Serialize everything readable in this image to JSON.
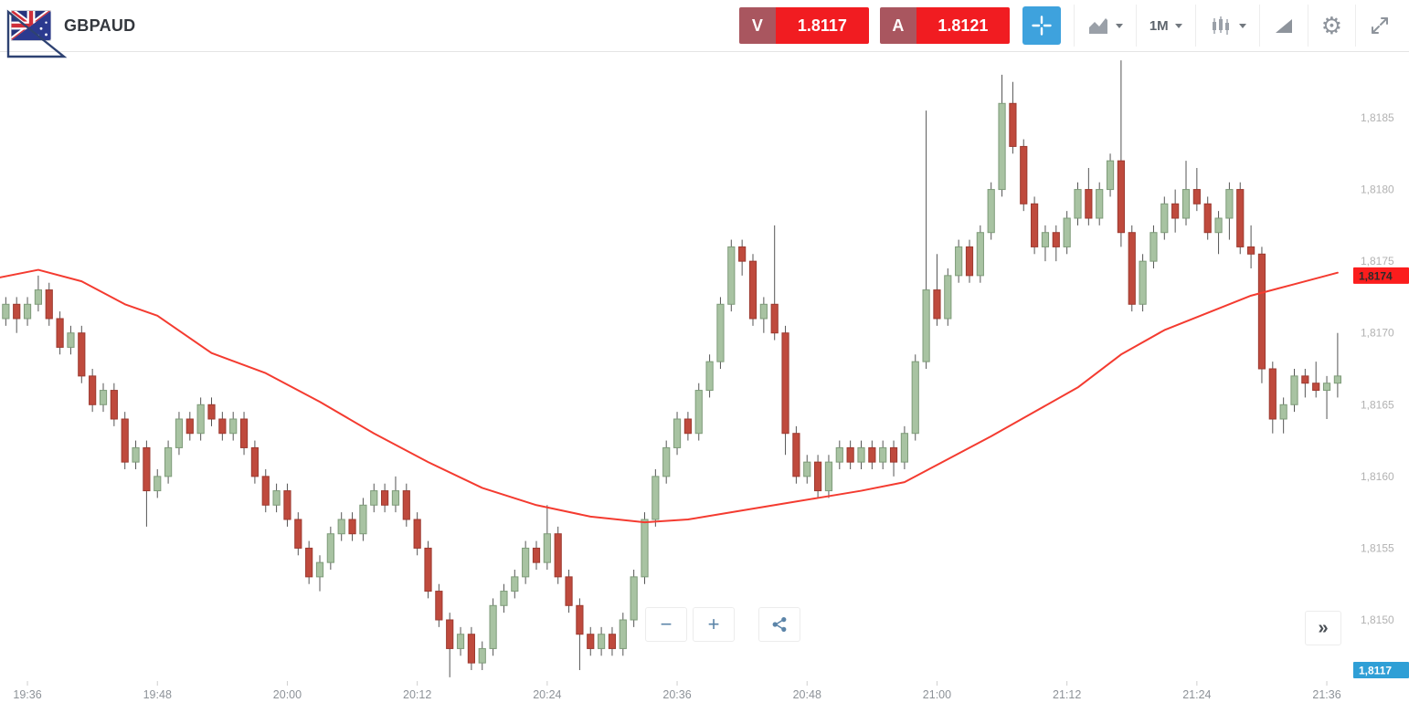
{
  "header": {
    "symbol": "GBPAUD",
    "sell": {
      "label": "V",
      "price": "1.8117"
    },
    "buy": {
      "label": "A",
      "price": "1.8121"
    },
    "timeframe": "1M"
  },
  "icons": {
    "gear": "⚙",
    "zoom_out": "−",
    "zoom_in": "+",
    "panel_toggle": "»"
  },
  "chart_data": {
    "type": "candlestick",
    "symbol": "GBPAUD",
    "interval": "1M",
    "start_time": "19:33",
    "interval_minutes": 1,
    "grid": false,
    "ylim": [
      1.8146,
      1.819
    ],
    "y_ticks": [
      {
        "value": 1.8185,
        "label": "1,8185"
      },
      {
        "value": 1.818,
        "label": "1,8180"
      },
      {
        "value": 1.8175,
        "label": "1,8175"
      },
      {
        "value": 1.817,
        "label": "1,8170"
      },
      {
        "value": 1.8165,
        "label": "1,8165"
      },
      {
        "value": 1.816,
        "label": "1,8160"
      },
      {
        "value": 1.8155,
        "label": "1,8155"
      },
      {
        "value": 1.815,
        "label": "1,8150"
      }
    ],
    "x_ticks": [
      {
        "index": 3,
        "label": "19:36"
      },
      {
        "index": 15,
        "label": "19:48"
      },
      {
        "index": 27,
        "label": "20:00"
      },
      {
        "index": 39,
        "label": "20:12"
      },
      {
        "index": 51,
        "label": "20:24"
      },
      {
        "index": 63,
        "label": "20:36"
      },
      {
        "index": 75,
        "label": "20:48"
      },
      {
        "index": 87,
        "label": "21:00"
      },
      {
        "index": 99,
        "label": "21:12"
      },
      {
        "index": 111,
        "label": "21:24"
      },
      {
        "index": 123,
        "label": "21:36"
      }
    ],
    "candles": [
      [
        1.81705,
        1.81715,
        1.81695,
        1.8171
      ],
      [
        1.8171,
        1.81725,
        1.81705,
        1.8172
      ],
      [
        1.8172,
        1.81725,
        1.817,
        1.8171
      ],
      [
        1.8171,
        1.81725,
        1.81705,
        1.8172
      ],
      [
        1.8172,
        1.8174,
        1.81715,
        1.8173
      ],
      [
        1.8173,
        1.81735,
        1.81705,
        1.8171
      ],
      [
        1.8171,
        1.81715,
        1.81685,
        1.8169
      ],
      [
        1.8169,
        1.81705,
        1.81685,
        1.817
      ],
      [
        1.817,
        1.81705,
        1.81665,
        1.8167
      ],
      [
        1.8167,
        1.81675,
        1.81645,
        1.8165
      ],
      [
        1.8165,
        1.81665,
        1.81645,
        1.8166
      ],
      [
        1.8166,
        1.81665,
        1.81635,
        1.8164
      ],
      [
        1.8164,
        1.81645,
        1.81605,
        1.8161
      ],
      [
        1.8161,
        1.81625,
        1.81605,
        1.8162
      ],
      [
        1.8162,
        1.81625,
        1.81565,
        1.8159
      ],
      [
        1.8159,
        1.81605,
        1.81585,
        1.816
      ],
      [
        1.816,
        1.81625,
        1.81595,
        1.8162
      ],
      [
        1.8162,
        1.81645,
        1.81615,
        1.8164
      ],
      [
        1.8164,
        1.81645,
        1.81625,
        1.8163
      ],
      [
        1.8163,
        1.81655,
        1.81625,
        1.8165
      ],
      [
        1.8165,
        1.81655,
        1.81635,
        1.8164
      ],
      [
        1.8164,
        1.81645,
        1.81625,
        1.8163
      ],
      [
        1.8163,
        1.81645,
        1.81625,
        1.8164
      ],
      [
        1.8164,
        1.81645,
        1.81615,
        1.8162
      ],
      [
        1.8162,
        1.81625,
        1.81595,
        1.816
      ],
      [
        1.816,
        1.81605,
        1.81575,
        1.8158
      ],
      [
        1.8158,
        1.81595,
        1.81575,
        1.8159
      ],
      [
        1.8159,
        1.81595,
        1.81565,
        1.8157
      ],
      [
        1.8157,
        1.81575,
        1.81545,
        1.8155
      ],
      [
        1.8155,
        1.81555,
        1.81525,
        1.8153
      ],
      [
        1.8153,
        1.81545,
        1.8152,
        1.8154
      ],
      [
        1.8154,
        1.81565,
        1.81535,
        1.8156
      ],
      [
        1.8156,
        1.81575,
        1.81555,
        1.8157
      ],
      [
        1.8157,
        1.81575,
        1.81555,
        1.8156
      ],
      [
        1.8156,
        1.81585,
        1.81555,
        1.8158
      ],
      [
        1.8158,
        1.81595,
        1.81575,
        1.8159
      ],
      [
        1.8159,
        1.81595,
        1.81575,
        1.8158
      ],
      [
        1.8158,
        1.816,
        1.81575,
        1.8159
      ],
      [
        1.8159,
        1.81595,
        1.81565,
        1.8157
      ],
      [
        1.8157,
        1.81575,
        1.81545,
        1.8155
      ],
      [
        1.8155,
        1.81555,
        1.81515,
        1.8152
      ],
      [
        1.8152,
        1.81525,
        1.81495,
        1.815
      ],
      [
        1.815,
        1.81505,
        1.8146,
        1.8148
      ],
      [
        1.8148,
        1.81495,
        1.81475,
        1.8149
      ],
      [
        1.8149,
        1.81495,
        1.81465,
        1.8147
      ],
      [
        1.8147,
        1.81485,
        1.81465,
        1.8148
      ],
      [
        1.8148,
        1.81515,
        1.81475,
        1.8151
      ],
      [
        1.8151,
        1.81525,
        1.81505,
        1.8152
      ],
      [
        1.8152,
        1.81535,
        1.81515,
        1.8153
      ],
      [
        1.8153,
        1.81555,
        1.81525,
        1.8155
      ],
      [
        1.8155,
        1.81555,
        1.81535,
        1.8154
      ],
      [
        1.8154,
        1.8158,
        1.81535,
        1.8156
      ],
      [
        1.8156,
        1.81565,
        1.81525,
        1.8153
      ],
      [
        1.8153,
        1.81535,
        1.81505,
        1.8151
      ],
      [
        1.8151,
        1.81515,
        1.81465,
        1.8149
      ],
      [
        1.8149,
        1.81495,
        1.81475,
        1.8148
      ],
      [
        1.8148,
        1.81495,
        1.81475,
        1.8149
      ],
      [
        1.8149,
        1.81495,
        1.81475,
        1.8148
      ],
      [
        1.8148,
        1.81505,
        1.81475,
        1.815
      ],
      [
        1.815,
        1.81535,
        1.81495,
        1.8153
      ],
      [
        1.8153,
        1.81575,
        1.81525,
        1.8157
      ],
      [
        1.8157,
        1.81605,
        1.81565,
        1.816
      ],
      [
        1.816,
        1.81625,
        1.81595,
        1.8162
      ],
      [
        1.8162,
        1.81645,
        1.81615,
        1.8164
      ],
      [
        1.8164,
        1.81645,
        1.81625,
        1.8163
      ],
      [
        1.8163,
        1.81665,
        1.81625,
        1.8166
      ],
      [
        1.8166,
        1.81685,
        1.81655,
        1.8168
      ],
      [
        1.8168,
        1.81725,
        1.81675,
        1.8172
      ],
      [
        1.8172,
        1.81765,
        1.81715,
        1.8176
      ],
      [
        1.8176,
        1.81765,
        1.8174,
        1.8175
      ],
      [
        1.8175,
        1.81755,
        1.81705,
        1.8171
      ],
      [
        1.8171,
        1.81725,
        1.817,
        1.8172
      ],
      [
        1.8172,
        1.81775,
        1.81695,
        1.817
      ],
      [
        1.817,
        1.81705,
        1.81615,
        1.8163
      ],
      [
        1.8163,
        1.81635,
        1.81595,
        1.816
      ],
      [
        1.816,
        1.81615,
        1.81595,
        1.8161
      ],
      [
        1.8161,
        1.81615,
        1.81585,
        1.8159
      ],
      [
        1.8159,
        1.81615,
        1.81585,
        1.8161
      ],
      [
        1.8161,
        1.81625,
        1.81605,
        1.8162
      ],
      [
        1.8162,
        1.81625,
        1.81605,
        1.8161
      ],
      [
        1.8161,
        1.81625,
        1.81605,
        1.8162
      ],
      [
        1.8162,
        1.81625,
        1.81605,
        1.8161
      ],
      [
        1.8161,
        1.81625,
        1.81605,
        1.8162
      ],
      [
        1.8162,
        1.81625,
        1.816,
        1.8161
      ],
      [
        1.8161,
        1.81635,
        1.81605,
        1.8163
      ],
      [
        1.8163,
        1.81685,
        1.81625,
        1.8168
      ],
      [
        1.8168,
        1.81855,
        1.81675,
        1.8173
      ],
      [
        1.8173,
        1.81755,
        1.81705,
        1.8171
      ],
      [
        1.8171,
        1.81745,
        1.81705,
        1.8174
      ],
      [
        1.8174,
        1.81765,
        1.81735,
        1.8176
      ],
      [
        1.8176,
        1.81765,
        1.81735,
        1.8174
      ],
      [
        1.8174,
        1.81775,
        1.81735,
        1.8177
      ],
      [
        1.8177,
        1.81805,
        1.81765,
        1.818
      ],
      [
        1.818,
        1.8188,
        1.81795,
        1.8186
      ],
      [
        1.8186,
        1.81875,
        1.81825,
        1.8183
      ],
      [
        1.8183,
        1.81835,
        1.81785,
        1.8179
      ],
      [
        1.8179,
        1.81795,
        1.81755,
        1.8176
      ],
      [
        1.8176,
        1.81775,
        1.8175,
        1.8177
      ],
      [
        1.8177,
        1.81775,
        1.8175,
        1.8176
      ],
      [
        1.8176,
        1.81785,
        1.81755,
        1.8178
      ],
      [
        1.8178,
        1.81805,
        1.81775,
        1.818
      ],
      [
        1.818,
        1.81815,
        1.81775,
        1.8178
      ],
      [
        1.8178,
        1.81805,
        1.81775,
        1.818
      ],
      [
        1.818,
        1.81825,
        1.81795,
        1.8182
      ],
      [
        1.8182,
        1.8189,
        1.8176,
        1.8177
      ],
      [
        1.8177,
        1.81775,
        1.81715,
        1.8172
      ],
      [
        1.8172,
        1.81755,
        1.81715,
        1.8175
      ],
      [
        1.8175,
        1.81775,
        1.81745,
        1.8177
      ],
      [
        1.8177,
        1.81795,
        1.81765,
        1.8179
      ],
      [
        1.8179,
        1.818,
        1.8177,
        1.8178
      ],
      [
        1.8178,
        1.8182,
        1.81775,
        1.818
      ],
      [
        1.818,
        1.81815,
        1.81785,
        1.8179
      ],
      [
        1.8179,
        1.81795,
        1.81765,
        1.8177
      ],
      [
        1.8177,
        1.81785,
        1.81755,
        1.8178
      ],
      [
        1.8178,
        1.81805,
        1.81765,
        1.818
      ],
      [
        1.818,
        1.81805,
        1.81755,
        1.8176
      ],
      [
        1.8176,
        1.81775,
        1.81745,
        1.81755
      ],
      [
        1.81755,
        1.8176,
        1.81665,
        1.81675
      ],
      [
        1.81675,
        1.8168,
        1.8163,
        1.8164
      ],
      [
        1.8164,
        1.81655,
        1.8163,
        1.8165
      ],
      [
        1.8165,
        1.81675,
        1.81645,
        1.8167
      ],
      [
        1.8167,
        1.81675,
        1.81655,
        1.81665
      ],
      [
        1.81665,
        1.8168,
        1.81655,
        1.8166
      ],
      [
        1.8166,
        1.8167,
        1.8164,
        1.81665
      ],
      [
        1.81665,
        1.817,
        1.81655,
        1.8167
      ]
    ],
    "ma_line": {
      "name": "moving-average",
      "anchors": [
        [
          0,
          1.81738
        ],
        [
          4,
          1.81744
        ],
        [
          8,
          1.81736
        ],
        [
          12,
          1.8172
        ],
        [
          15,
          1.81712
        ],
        [
          20,
          1.81686
        ],
        [
          25,
          1.81672
        ],
        [
          30,
          1.81652
        ],
        [
          35,
          1.8163
        ],
        [
          40,
          1.8161
        ],
        [
          45,
          1.81592
        ],
        [
          50,
          1.8158
        ],
        [
          55,
          1.81572
        ],
        [
          60,
          1.81568
        ],
        [
          64,
          1.8157
        ],
        [
          68,
          1.81575
        ],
        [
          72,
          1.8158
        ],
        [
          76,
          1.81585
        ],
        [
          80,
          1.8159
        ],
        [
          84,
          1.81596
        ],
        [
          88,
          1.81612
        ],
        [
          92,
          1.81628
        ],
        [
          96,
          1.81645
        ],
        [
          100,
          1.81662
        ],
        [
          104,
          1.81685
        ],
        [
          108,
          1.81702
        ],
        [
          112,
          1.81714
        ],
        [
          116,
          1.81726
        ],
        [
          120,
          1.81734
        ],
        [
          124,
          1.81742
        ]
      ]
    },
    "price_markers": [
      {
        "label": "1,8174",
        "value": 1.8174,
        "bg": "#fb1d1d",
        "text_color": "#2b2b2b",
        "pinned": null
      },
      {
        "label": "1,8117",
        "value": 1.8117,
        "bg": "#2f9fd6",
        "text_color": "#ffffff",
        "pinned": "bottom"
      }
    ],
    "colors": {
      "up_fill": "#a8c3a2",
      "up_stroke": "#7e9b79",
      "down_fill": "#bf4a3d",
      "down_stroke": "#9c3a30",
      "wick": "#555555",
      "ma": "#f43b30",
      "y_label": "#b2b2b2",
      "x_label": "#8d9298",
      "tick": "#cfcfcf"
    }
  }
}
